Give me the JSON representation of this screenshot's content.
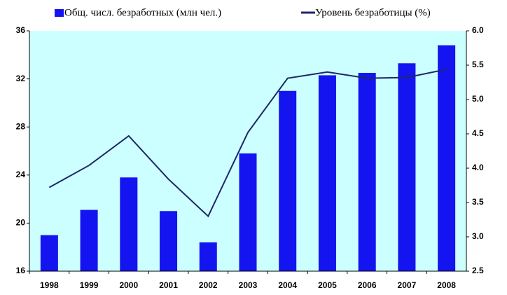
{
  "chart_data": {
    "type": "bar-line",
    "categories": [
      "1998",
      "1999",
      "2000",
      "2001",
      "2002",
      "2003",
      "2004",
      "2005",
      "2006",
      "2007",
      "2008"
    ],
    "series": [
      {
        "name": "Общ. числ. безработных (млн чел.)",
        "color": "#1414f0",
        "type": "bar",
        "values": [
          19.0,
          21.1,
          23.8,
          21.0,
          18.4,
          25.8,
          31.0,
          32.3,
          32.5,
          33.3,
          34.8
        ]
      },
      {
        "name": "Уровень безработицы (%)",
        "color": "#1f2766",
        "type": "line",
        "axis": "y2",
        "values": [
          3.72,
          4.04,
          4.47,
          3.84,
          3.3,
          4.52,
          5.31,
          5.4,
          5.31,
          5.32,
          5.44
        ]
      }
    ],
    "ylim": [
      16,
      36
    ],
    "yticks": [
      16,
      20,
      24,
      28,
      32,
      36
    ],
    "y2lim": [
      2.5,
      6.0
    ],
    "y2ticks": [
      {
        "value": 2.5,
        "label": "2.5"
      },
      {
        "value": 3,
        "label": "3.0"
      },
      {
        "value": 3.5,
        "label": "3.5"
      },
      {
        "value": 4,
        "label": "4.0"
      },
      {
        "value": 4.5,
        "label": "4.5"
      },
      {
        "value": 5,
        "label": "5.0"
      },
      {
        "value": 5.5,
        "label": "5.5"
      },
      {
        "value": 6,
        "label": "6.0"
      }
    ],
    "background": "#ccffff",
    "grid": false,
    "legend": "top"
  }
}
